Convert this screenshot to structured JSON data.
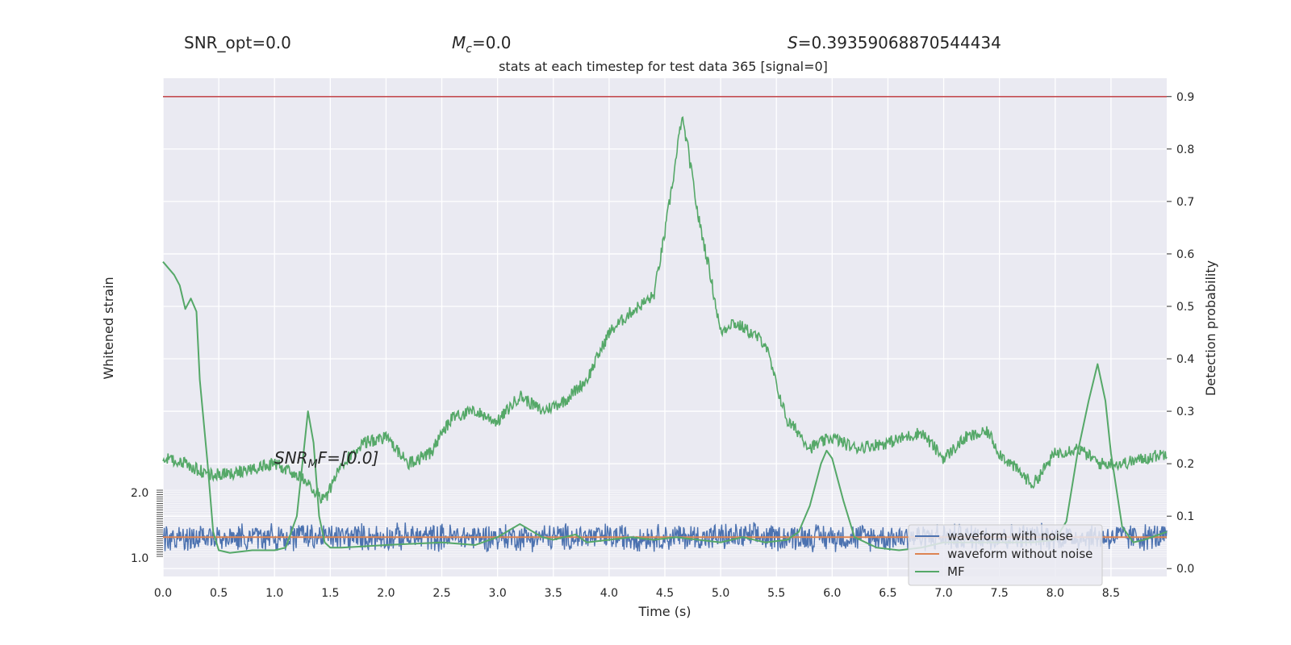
{
  "chart_data": {
    "type": "line",
    "title": "stats at each timestep for test data 365 [signal=0]",
    "header": {
      "snr_opt": "SNR_opt=0.0",
      "mc_symbol": "M",
      "mc_sub": "c",
      "mc_value": "=0.0",
      "s_symbol": "S",
      "s_value": "=0.39359068870544434"
    },
    "annotation": {
      "snr_symbol": "SNR",
      "snr_sub": "M",
      "snr_rest": "F=[0.0]"
    },
    "xlabel": "Time (s)",
    "ylabel_left": "Whitened strain",
    "ylabel_right": "Detection probability",
    "xlim": [
      0,
      9
    ],
    "x_ticks": [
      "0.0",
      "0.5",
      "1.0",
      "1.5",
      "2.0",
      "2.5",
      "3.0",
      "3.5",
      "4.0",
      "4.5",
      "5.0",
      "5.5",
      "6.0",
      "6.5",
      "7.0",
      "7.5",
      "8.0",
      "8.5"
    ],
    "ylim_right": [
      -0.015,
      0.935
    ],
    "y_ticks_right": [
      "0.0",
      "0.1",
      "0.2",
      "0.3",
      "0.4",
      "0.5",
      "0.6",
      "0.7",
      "0.8",
      "0.9"
    ],
    "y_ticks_left_top": "2.0",
    "y_ticks_left_bottom": "1.0",
    "threshold": 0.9,
    "grid": true,
    "legend_position": "lower-right",
    "colors": {
      "noise": "#4c72b0",
      "clean": "#dd8452",
      "mf": "#55a868",
      "threshold": "#c44e52",
      "background": "#eaeaf2"
    },
    "series": [
      {
        "name": "waveform with noise",
        "description_values": "dense noise around 0.06 with amplitude about 0.025"
      },
      {
        "name": "waveform without noise",
        "values_constant": 0.06
      },
      {
        "name": "MF",
        "x": [
          0,
          0.1,
          0.15,
          0.2,
          0.25,
          0.3,
          0.33,
          0.4,
          0.45,
          0.5,
          0.6,
          0.8,
          1.0,
          1.1,
          1.2,
          1.25,
          1.3,
          1.35,
          1.4,
          1.45,
          1.5,
          1.6,
          2.0,
          2.5,
          2.8,
          3.0,
          3.2,
          3.4,
          3.5,
          3.7,
          3.8,
          4.0,
          4.2,
          4.4,
          4.6,
          4.8,
          5.0,
          5.2,
          5.4,
          5.6,
          5.7,
          5.8,
          5.9,
          5.95,
          6.0,
          6.1,
          6.2,
          6.4,
          6.6,
          6.8,
          7.0,
          7.2,
          7.4,
          7.6,
          7.8,
          8.0,
          8.1,
          8.2,
          8.3,
          8.38,
          8.45,
          8.5,
          8.6,
          8.7,
          8.8,
          9.0
        ],
        "y": [
          0.585,
          0.56,
          0.54,
          0.495,
          0.515,
          0.49,
          0.36,
          0.2,
          0.07,
          0.035,
          0.03,
          0.035,
          0.035,
          0.04,
          0.1,
          0.2,
          0.3,
          0.24,
          0.1,
          0.05,
          0.04,
          0.04,
          0.045,
          0.05,
          0.045,
          0.06,
          0.085,
          0.06,
          0.055,
          0.065,
          0.05,
          0.055,
          0.06,
          0.055,
          0.06,
          0.055,
          0.05,
          0.06,
          0.05,
          0.055,
          0.07,
          0.12,
          0.2,
          0.225,
          0.21,
          0.13,
          0.06,
          0.04,
          0.035,
          0.04,
          0.05,
          0.05,
          0.05,
          0.05,
          0.05,
          0.055,
          0.09,
          0.22,
          0.32,
          0.39,
          0.32,
          0.22,
          0.08,
          0.05,
          0.055,
          0.07
        ]
      },
      {
        "name": "detection probability",
        "x": [
          0,
          0.2,
          0.4,
          0.6,
          0.8,
          1.0,
          1.2,
          1.3,
          1.45,
          1.6,
          1.8,
          2.0,
          2.2,
          2.4,
          2.6,
          2.8,
          3.0,
          3.2,
          3.4,
          3.6,
          3.8,
          4.0,
          4.2,
          4.4,
          4.5,
          4.6,
          4.65,
          4.7,
          4.8,
          4.9,
          5.0,
          5.1,
          5.2,
          5.4,
          5.5,
          5.6,
          5.7,
          5.8,
          6.0,
          6.2,
          6.5,
          6.8,
          7.0,
          7.2,
          7.4,
          7.5,
          7.6,
          7.8,
          8.0,
          8.2,
          8.4,
          8.6,
          8.8,
          9.0
        ],
        "y": [
          0.21,
          0.2,
          0.18,
          0.18,
          0.19,
          0.2,
          0.18,
          0.16,
          0.13,
          0.2,
          0.24,
          0.25,
          0.2,
          0.22,
          0.29,
          0.3,
          0.28,
          0.33,
          0.3,
          0.32,
          0.36,
          0.45,
          0.49,
          0.52,
          0.64,
          0.78,
          0.86,
          0.81,
          0.67,
          0.57,
          0.45,
          0.47,
          0.46,
          0.43,
          0.35,
          0.28,
          0.26,
          0.23,
          0.25,
          0.23,
          0.24,
          0.26,
          0.21,
          0.25,
          0.26,
          0.22,
          0.2,
          0.16,
          0.22,
          0.23,
          0.2,
          0.2,
          0.21,
          0.22
        ]
      }
    ]
  }
}
